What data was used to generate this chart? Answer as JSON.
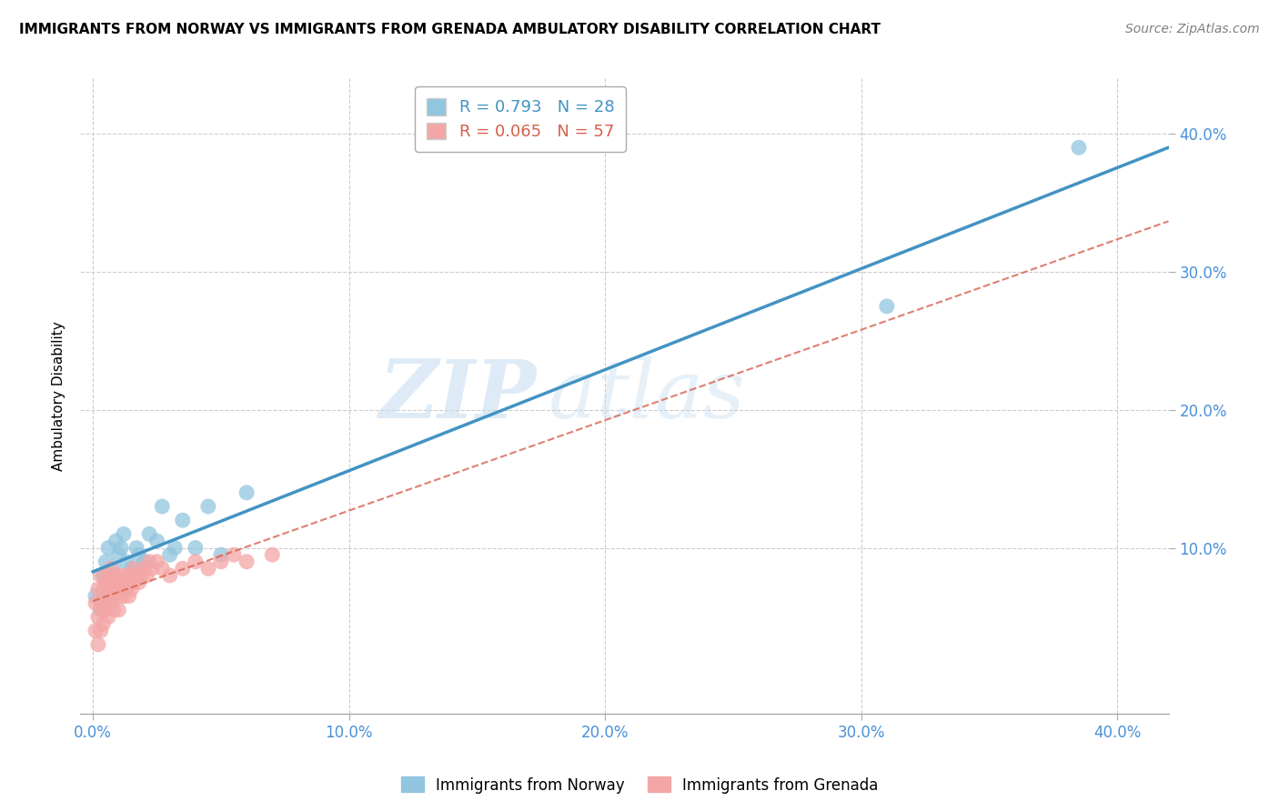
{
  "title": "IMMIGRANTS FROM NORWAY VS IMMIGRANTS FROM GRENADA AMBULATORY DISABILITY CORRELATION CHART",
  "source": "Source: ZipAtlas.com",
  "ylabel": "Ambulatory Disability",
  "xlim": [
    -0.005,
    0.42
  ],
  "ylim": [
    -0.02,
    0.44
  ],
  "xtick_labels": [
    "0.0%",
    "10.0%",
    "20.0%",
    "30.0%",
    "40.0%"
  ],
  "xtick_vals": [
    0.0,
    0.1,
    0.2,
    0.3,
    0.4
  ],
  "ytick_labels": [
    "10.0%",
    "20.0%",
    "30.0%",
    "40.0%"
  ],
  "ytick_vals": [
    0.1,
    0.2,
    0.3,
    0.4
  ],
  "norway_R": 0.793,
  "norway_N": 28,
  "grenada_R": 0.065,
  "grenada_N": 57,
  "norway_color": "#92c5de",
  "grenada_color": "#f4a6a6",
  "norway_line_color": "#4393c3",
  "grenada_line_color": "#d6604d",
  "watermark_zip": "ZIP",
  "watermark_atlas": "atlas",
  "norway_points_x": [
    0.001,
    0.003,
    0.004,
    0.005,
    0.006,
    0.007,
    0.008,
    0.009,
    0.01,
    0.011,
    0.012,
    0.013,
    0.015,
    0.017,
    0.018,
    0.02,
    0.022,
    0.025,
    0.027,
    0.03,
    0.032,
    0.035,
    0.04,
    0.045,
    0.05,
    0.06,
    0.31,
    0.385
  ],
  "norway_points_y": [
    0.065,
    0.055,
    0.08,
    0.09,
    0.1,
    0.075,
    0.085,
    0.105,
    0.095,
    0.1,
    0.11,
    0.09,
    0.085,
    0.1,
    0.095,
    0.09,
    0.11,
    0.105,
    0.13,
    0.095,
    0.1,
    0.12,
    0.1,
    0.13,
    0.095,
    0.14,
    0.275,
    0.39
  ],
  "grenada_points_x": [
    0.001,
    0.001,
    0.002,
    0.002,
    0.002,
    0.003,
    0.003,
    0.003,
    0.004,
    0.004,
    0.004,
    0.005,
    0.005,
    0.005,
    0.006,
    0.006,
    0.006,
    0.007,
    0.007,
    0.007,
    0.008,
    0.008,
    0.008,
    0.009,
    0.009,
    0.01,
    0.01,
    0.01,
    0.011,
    0.011,
    0.012,
    0.012,
    0.013,
    0.013,
    0.014,
    0.014,
    0.015,
    0.015,
    0.016,
    0.016,
    0.017,
    0.018,
    0.019,
    0.02,
    0.021,
    0.022,
    0.023,
    0.025,
    0.027,
    0.03,
    0.035,
    0.04,
    0.045,
    0.05,
    0.055,
    0.06,
    0.07
  ],
  "grenada_points_y": [
    0.04,
    0.06,
    0.05,
    0.07,
    0.03,
    0.06,
    0.08,
    0.04,
    0.07,
    0.055,
    0.045,
    0.065,
    0.075,
    0.055,
    0.08,
    0.06,
    0.05,
    0.07,
    0.085,
    0.06,
    0.075,
    0.065,
    0.055,
    0.08,
    0.07,
    0.065,
    0.075,
    0.055,
    0.08,
    0.07,
    0.075,
    0.065,
    0.08,
    0.07,
    0.075,
    0.065,
    0.08,
    0.07,
    0.075,
    0.085,
    0.08,
    0.075,
    0.08,
    0.085,
    0.08,
    0.09,
    0.085,
    0.09,
    0.085,
    0.08,
    0.085,
    0.09,
    0.085,
    0.09,
    0.095,
    0.09,
    0.095
  ],
  "background_color": "#ffffff",
  "grid_color": "#cccccc"
}
